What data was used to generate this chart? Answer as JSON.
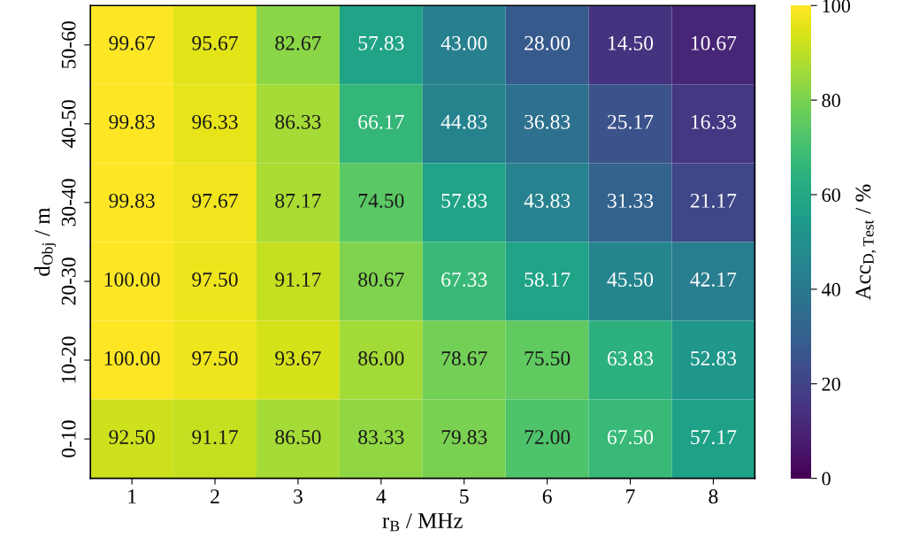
{
  "chart_data": {
    "type": "heatmap",
    "xlabel": "r$_{B}$ / MHz",
    "ylabel": "d$_{Obj}$ / m",
    "clabel": "Acc$_{D,Test}$ / %",
    "categories": [
      "1",
      "2",
      "3",
      "4",
      "5",
      "6",
      "7",
      "8"
    ],
    "y_categories": [
      "50-60",
      "40-50",
      "30-40",
      "20-30",
      "10-20",
      "0-10"
    ],
    "cells": [
      [
        99.67,
        95.67,
        82.67,
        57.83,
        43.0,
        28.0,
        14.5,
        10.67
      ],
      [
        99.83,
        96.33,
        86.33,
        66.17,
        44.83,
        36.83,
        25.17,
        16.33
      ],
      [
        99.83,
        97.67,
        87.17,
        74.5,
        57.83,
        43.83,
        31.33,
        21.17
      ],
      [
        100.0,
        97.5,
        91.17,
        80.67,
        67.33,
        58.17,
        45.5,
        42.17
      ],
      [
        100.0,
        97.5,
        93.67,
        86.0,
        78.67,
        75.5,
        63.83,
        52.83
      ],
      [
        92.5,
        91.17,
        86.5,
        83.33,
        79.83,
        72.0,
        67.5,
        57.17
      ]
    ],
    "cell_labels": [
      [
        "99.67",
        "95.67",
        "82.67",
        "57.83",
        "43.00",
        "28.00",
        "14.50",
        "10.67"
      ],
      [
        "99.83",
        "96.33",
        "86.33",
        "66.17",
        "44.83",
        "36.83",
        "25.17",
        "16.33"
      ],
      [
        "99.83",
        "97.67",
        "87.17",
        "74.50",
        "57.83",
        "43.83",
        "31.33",
        "21.17"
      ],
      [
        "100.00",
        "97.50",
        "91.17",
        "80.67",
        "67.33",
        "58.17",
        "45.50",
        "42.17"
      ],
      [
        "100.00",
        "97.50",
        "93.67",
        "86.00",
        "78.67",
        "75.50",
        "63.83",
        "52.83"
      ],
      [
        "92.50",
        "91.17",
        "86.50",
        "83.33",
        "79.83",
        "72.00",
        "67.50",
        "57.17"
      ]
    ],
    "clim": [
      0,
      100
    ],
    "cticks": [
      0,
      20,
      40,
      60,
      80,
      100
    ]
  }
}
